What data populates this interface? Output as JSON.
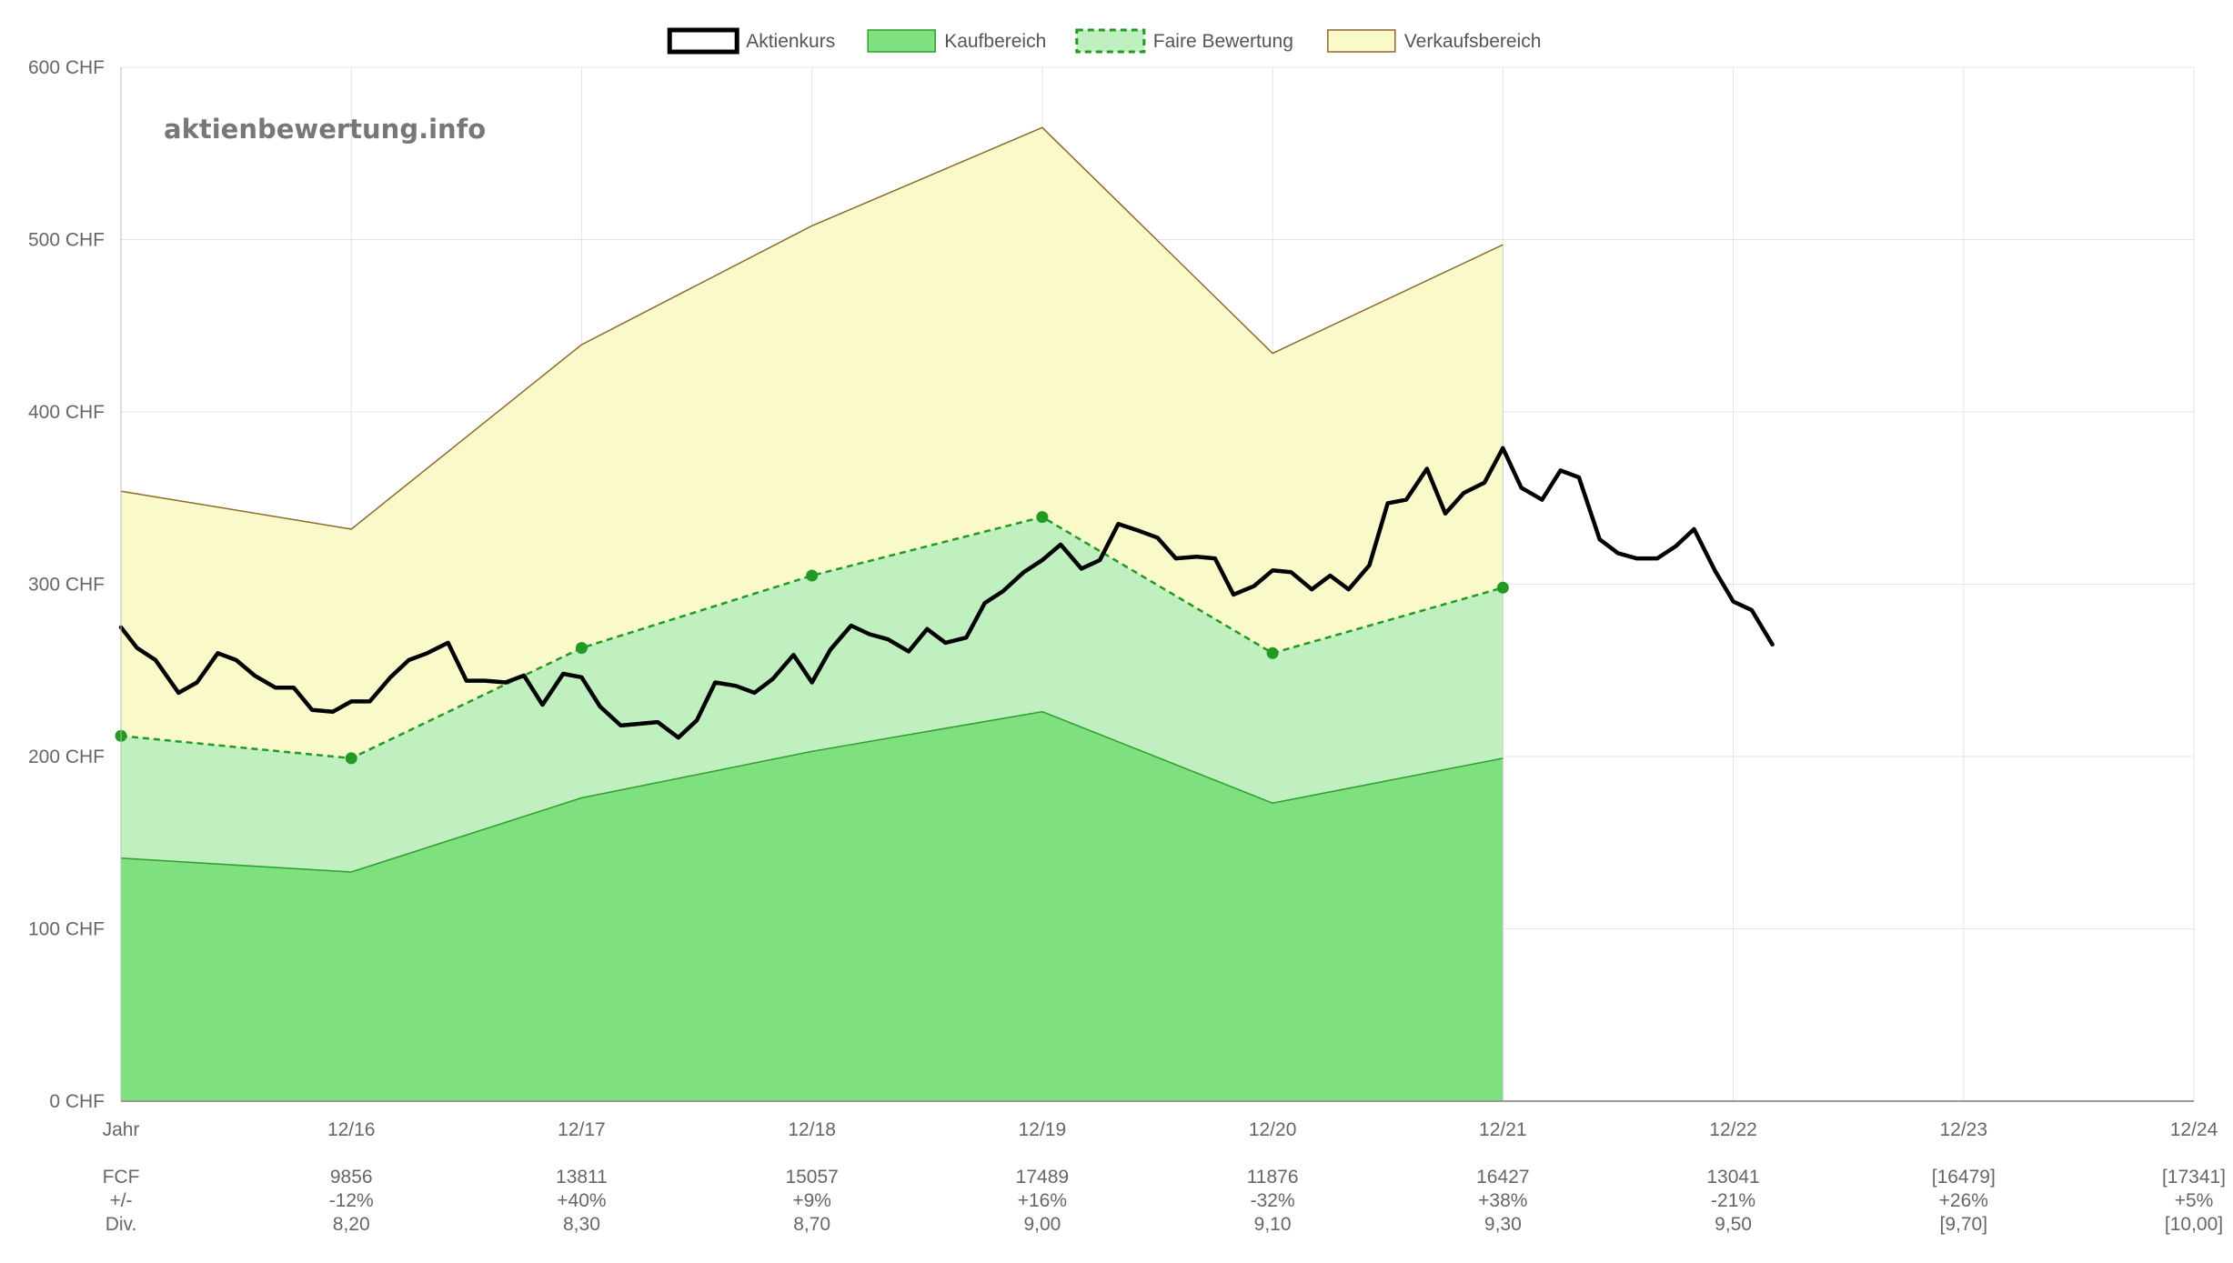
{
  "chart_data": {
    "type": "area",
    "watermark": "aktienbewertung.info",
    "legend": {
      "placement": "top-center",
      "items": [
        {
          "name": "Aktienkurs",
          "style": "line",
          "stroke": "#000000",
          "fill": "#ffffff"
        },
        {
          "name": "Kaufbereich",
          "style": "area",
          "stroke": "#2e9e2e",
          "fill": "#7fe07f"
        },
        {
          "name": "Faire Bewertung",
          "style": "dashed",
          "stroke": "#229922",
          "fill": "#c0efc0"
        },
        {
          "name": "Verkaufsbereich",
          "style": "area",
          "stroke": "#8a6a2a",
          "fill": "#faf9c9"
        }
      ]
    },
    "y_axis": {
      "min": 0,
      "max": 600,
      "step": 100,
      "unit": " CHF",
      "ticks": [
        "0 CHF",
        "100 CHF",
        "200 CHF",
        "300 CHF",
        "400 CHF",
        "500 CHF",
        "600 CHF"
      ]
    },
    "x_axis": {
      "min": 0,
      "max": 9,
      "labels": [
        "Jahr",
        "12/16",
        "12/17",
        "12/18",
        "12/19",
        "12/20",
        "12/21",
        "12/22",
        "12/23",
        "12/24"
      ]
    },
    "grid": true,
    "colors": {
      "kauf_fill": "#7fe07f",
      "kauf_line": "#2e9e2e",
      "fair_fill": "#c0efc0",
      "fair_line": "#229922",
      "verkauf_fill": "#faf9c9",
      "verkauf_line": "#8a6a2a",
      "price": "#000000",
      "grid": "#e4e4e4",
      "axis": "#999999"
    },
    "series": [
      {
        "name": "Verkaufsbereich",
        "x": [
          0,
          1,
          2,
          3,
          4,
          5,
          6
        ],
        "values": [
          354,
          332,
          439,
          508,
          565,
          434,
          497
        ]
      },
      {
        "name": "Faire Bewertung",
        "x": [
          0,
          1,
          2,
          3,
          4,
          5,
          6
        ],
        "values": [
          212,
          199,
          263,
          305,
          339,
          260,
          298
        ]
      },
      {
        "name": "Kaufbereich",
        "x": [
          0,
          1,
          2,
          3,
          4,
          5,
          6
        ],
        "values": [
          141,
          133,
          176,
          203,
          226,
          173,
          199
        ]
      },
      {
        "name": "Aktienkurs",
        "x": [
          0,
          0.07,
          0.15,
          0.25,
          0.33,
          0.42,
          0.5,
          0.58,
          0.67,
          0.75,
          0.83,
          0.92,
          1.0,
          1.08,
          1.17,
          1.25,
          1.33,
          1.42,
          1.5,
          1.58,
          1.67,
          1.75,
          1.83,
          1.92,
          2.0,
          2.08,
          2.17,
          2.25,
          2.33,
          2.42,
          2.5,
          2.58,
          2.67,
          2.75,
          2.83,
          2.92,
          3.0,
          3.08,
          3.17,
          3.25,
          3.33,
          3.42,
          3.5,
          3.58,
          3.67,
          3.75,
          3.83,
          3.92,
          4.0,
          4.08,
          4.17,
          4.25,
          4.33,
          4.42,
          4.5,
          4.58,
          4.67,
          4.75,
          4.83,
          4.92,
          5.0,
          5.08,
          5.17,
          5.25,
          5.33,
          5.42,
          5.5,
          5.58,
          5.67,
          5.75,
          5.83,
          5.92,
          6.0,
          6.08,
          6.17,
          6.25,
          6.33,
          6.42,
          6.5,
          6.58,
          6.67,
          6.75,
          6.83,
          6.92,
          7.0,
          7.08,
          7.17
        ],
        "values": [
          275,
          263,
          256,
          237,
          243,
          260,
          256,
          247,
          240,
          240,
          227,
          226,
          232,
          232,
          246,
          256,
          260,
          266,
          244,
          244,
          243,
          247,
          230,
          248,
          246,
          229,
          218,
          219,
          220,
          211,
          221,
          243,
          241,
          237,
          245,
          259,
          243,
          262,
          276,
          271,
          268,
          261,
          274,
          266,
          269,
          289,
          296,
          307,
          314,
          323,
          309,
          314,
          335,
          331,
          327,
          315,
          316,
          315,
          294,
          299,
          308,
          307,
          297,
          305,
          297,
          311,
          347,
          349,
          367,
          341,
          353,
          359,
          379,
          356,
          349,
          366,
          362,
          326,
          318,
          315,
          315,
          322,
          332,
          308,
          290,
          285,
          265
        ]
      }
    ],
    "table": {
      "rows": [
        {
          "label": "FCF",
          "values": [
            "9856",
            "13811",
            "15057",
            "17489",
            "11876",
            "16427",
            "13041",
            "[16479]",
            "[17341]"
          ]
        },
        {
          "label": "+/-",
          "values": [
            "-12%",
            "+40%",
            "+9%",
            "+16%",
            "-32%",
            "+38%",
            "-21%",
            "+26%",
            "+5%"
          ]
        },
        {
          "label": "Div.",
          "values": [
            "8,20",
            "8,30",
            "8,70",
            "9,00",
            "9,10",
            "9,30",
            "9,50",
            "[9,70]",
            "[10,00]"
          ]
        }
      ]
    }
  }
}
